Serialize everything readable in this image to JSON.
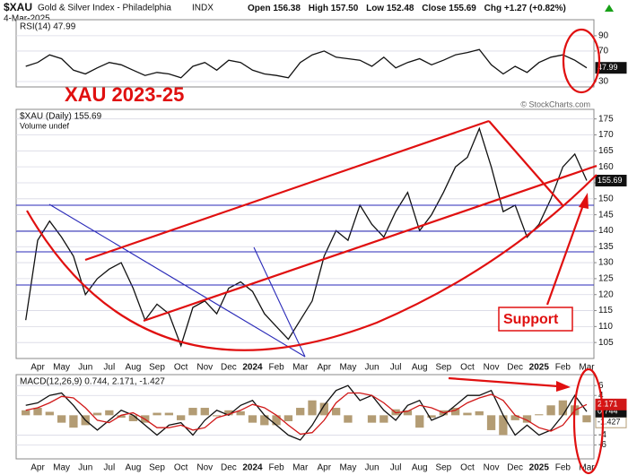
{
  "header": {
    "symbol": "$XAU",
    "name": "Gold & Silver Index - Philadelphia",
    "exchange": "INDX",
    "date": "4-Mar-2025",
    "quote": [
      {
        "label": "Open",
        "value": "156.38"
      },
      {
        "label": "High",
        "value": "157.50"
      },
      {
        "label": "Low",
        "value": "152.48"
      },
      {
        "label": "Close",
        "value": "155.69"
      },
      {
        "label": "Chg",
        "value": "+1.27 (+0.82%)"
      }
    ],
    "watermark": "© StockCharts.com"
  },
  "chart_data": [
    {
      "type": "line",
      "legend": "RSI(14) 47.99",
      "ylim": [
        23,
        111
      ],
      "yticks": [
        30,
        70,
        90
      ],
      "grid": true,
      "series": [
        {
          "name": "RSI(14)",
          "color": "#111111",
          "kind": "line",
          "values": [
            50,
            55,
            65,
            60,
            45,
            40,
            48,
            55,
            52,
            45,
            38,
            42,
            40,
            35,
            50,
            55,
            45,
            58,
            55,
            45,
            40,
            38,
            35,
            55,
            65,
            70,
            62,
            60,
            58,
            50,
            62,
            48,
            55,
            60,
            52,
            58,
            65,
            68,
            72,
            52,
            40,
            50,
            42,
            55,
            62,
            65,
            58,
            47.99
          ]
        }
      ]
    },
    {
      "type": "line",
      "legend": "$XAU (Daily) 155.69",
      "legend2": "Volume undef",
      "ylim": [
        100,
        178
      ],
      "yticks": [
        105,
        110,
        115,
        120,
        125,
        130,
        135,
        140,
        145,
        150,
        155,
        160,
        165,
        170,
        175
      ],
      "grid": true,
      "annotations": [
        "XAU 2023-25",
        "Support"
      ],
      "categories": [
        null,
        "Apr",
        null,
        "May",
        null,
        "Jun",
        null,
        "Jul",
        null,
        "Aug",
        null,
        "Sep",
        null,
        "Oct",
        null,
        "Nov",
        null,
        "Dec",
        null,
        "2024",
        null,
        "Feb",
        null,
        "Mar",
        null,
        "Apr",
        null,
        "May",
        null,
        "Jun",
        null,
        "Jul",
        null,
        "Aug",
        null,
        "Sep",
        null,
        "Oct",
        null,
        "Nov",
        null,
        "Dec",
        null,
        "2025",
        null,
        "Feb",
        null,
        "Mar"
      ],
      "series": [
        {
          "name": "$XAU (Daily)",
          "color": "#111111",
          "kind": "line",
          "values": [
            112,
            137,
            143,
            138,
            132,
            120,
            125,
            128,
            130,
            122,
            112,
            117,
            114,
            104,
            116,
            118,
            114,
            122,
            124,
            121,
            114,
            110,
            106,
            112,
            118,
            132,
            140,
            137,
            148,
            142,
            138,
            146,
            152,
            140,
            145,
            152,
            160,
            163,
            172,
            160,
            146,
            148,
            138,
            142,
            150,
            160,
            164,
            155.69
          ]
        }
      ]
    },
    {
      "type": "line",
      "legend": "MACD(12,26,9) 0.744, 2.171, -1.427",
      "ylim": [
        -8.8,
        8.2
      ],
      "yticks": [
        -6,
        -4,
        4,
        6
      ],
      "grid": true,
      "series": [
        {
          "name": "Histogram",
          "color": "#b39c74",
          "kind": "bar",
          "values": [
            1,
            1.5,
            0.7,
            -1.5,
            -2.5,
            -2,
            0.5,
            1,
            -0.5,
            -1.2,
            -1.5,
            0.5,
            0.5,
            -1,
            1.5,
            1.5,
            -0.2,
            1,
            0.8,
            -1.5,
            -2,
            -2,
            -1.2,
            1.5,
            3,
            2.5,
            1.5,
            -1.5,
            0,
            -1.5,
            -1.5,
            1.2,
            1,
            -2.5,
            -0.5,
            1,
            1.5,
            0.5,
            0.8,
            -3,
            -4,
            -1,
            -1.5,
            0.2,
            2,
            3,
            2,
            -1.427
          ]
        },
        {
          "name": "MACD",
          "color": "#111111",
          "kind": "line",
          "values": [
            2,
            2.5,
            4,
            4.5,
            2,
            -1,
            -3,
            -1,
            1,
            0,
            -2,
            -4,
            -2,
            -1.5,
            -4,
            -1,
            1,
            0,
            2,
            3,
            0,
            -2,
            -4,
            -5,
            -2,
            2,
            5,
            6,
            3,
            4,
            1,
            -1,
            2,
            3,
            -1,
            0,
            2,
            4,
            4,
            5,
            0,
            -4,
            -2,
            -4,
            -3,
            0,
            4,
            0.744
          ]
        },
        {
          "name": "Signal",
          "color": "#d01818",
          "kind": "line",
          "values": [
            1,
            1.5,
            2.5,
            3.8,
            3.5,
            1.5,
            -1,
            -1.5,
            0,
            0.5,
            -0.8,
            -2.5,
            -2.5,
            -2,
            -3,
            -2.5,
            -0.5,
            0.2,
            1,
            2.2,
            1.5,
            0,
            -2,
            -3.8,
            -3.5,
            -1,
            2.5,
            4.5,
            4.5,
            4,
            2.5,
            0.5,
            0.8,
            2,
            1.5,
            0.5,
            1,
            2.5,
            3.5,
            4.2,
            3,
            0,
            -1,
            -2.5,
            -3.2,
            -2,
            1,
            2.171
          ]
        }
      ]
    }
  ]
}
